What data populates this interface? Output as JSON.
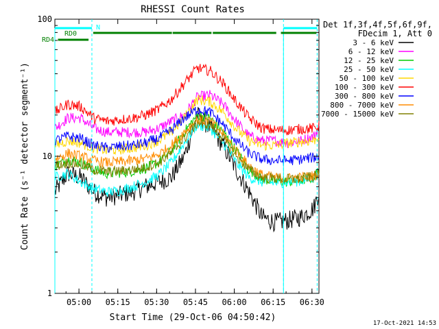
{
  "chart_data": {
    "type": "line",
    "title": "RHESSI Count Rates",
    "xlabel": "Start Time (29-Oct-06 04:50:42)",
    "ylabel": "Count Rate (s⁻¹ detector segment⁻¹)",
    "y_scale": "log",
    "ylim": [
      1,
      100
    ],
    "xlim_minutes_from_start": [
      0,
      102
    ],
    "x_ticks": [
      "05:00",
      "05:15",
      "05:30",
      "05:45",
      "06:00",
      "06:15",
      "06:30"
    ],
    "x_tick_minutes": [
      9.3,
      24.3,
      39.3,
      54.3,
      69.3,
      84.3,
      99.3
    ],
    "y_ticks": [
      "1",
      "10",
      "100"
    ],
    "y_tick_values": [
      1,
      10,
      100
    ],
    "legend": {
      "placement": "right",
      "header_lines": [
        "Det 1f,3f,4f,5f,6f,9f,",
        "FDecim 1, Att 0"
      ],
      "entries": [
        "3 - 6 keV",
        "6 - 12 keV",
        "12 - 25 keV",
        "25 - 50 keV",
        "50 - 100 keV",
        "100 - 300 keV",
        "300 - 800 keV",
        "800 - 7000 keV",
        "7000 - 15000 keV"
      ]
    },
    "series": [
      {
        "name": "3 - 6 keV",
        "color": "#000000",
        "x": [
          0,
          5,
          10,
          15,
          20,
          25,
          30,
          35,
          40,
          45,
          50,
          55,
          60,
          65,
          70,
          75,
          80,
          85,
          90,
          95,
          100,
          102
        ],
        "y": [
          5.5,
          7.5,
          7,
          5.5,
          5,
          5.2,
          5.5,
          6,
          6.5,
          7,
          10,
          20,
          16,
          12,
          8,
          5.5,
          3.6,
          3.3,
          3.4,
          3.6,
          4.2,
          5.5
        ]
      },
      {
        "name": "6 - 12 keV",
        "color": "#ff00ff",
        "x": [
          0,
          5,
          10,
          15,
          20,
          25,
          30,
          35,
          40,
          45,
          50,
          55,
          60,
          65,
          70,
          75,
          80,
          85,
          90,
          95,
          100,
          102
        ],
        "y": [
          16,
          19,
          19,
          16,
          15,
          15,
          15,
          15,
          16,
          18,
          20,
          27,
          28,
          24,
          18,
          14,
          13,
          13,
          12.5,
          13,
          14,
          16
        ]
      },
      {
        "name": "12 - 25 keV",
        "color": "#00cc00",
        "x": [
          0,
          5,
          10,
          15,
          20,
          25,
          30,
          35,
          40,
          45,
          50,
          55,
          60,
          65,
          70,
          75,
          80,
          85,
          90,
          95,
          100,
          102
        ],
        "y": [
          8.5,
          9.5,
          9,
          8,
          7.5,
          7.6,
          7.8,
          8.2,
          9,
          11,
          15,
          20,
          19,
          15,
          11,
          8,
          6.8,
          6.6,
          6.5,
          6.7,
          7,
          8
        ]
      },
      {
        "name": "25 - 50 keV",
        "color": "#00ffff",
        "x": [
          0,
          5,
          10,
          15,
          20,
          25,
          30,
          35,
          40,
          45,
          50,
          55,
          60,
          65,
          70,
          75,
          80,
          85,
          90,
          95,
          100,
          102
        ],
        "y": [
          7,
          7.5,
          6.5,
          5.8,
          5.5,
          5.6,
          6,
          6.5,
          7.3,
          9,
          12.5,
          17,
          16,
          12.5,
          9,
          7,
          6.5,
          6.4,
          6.5,
          6.6,
          7,
          7.5
        ]
      },
      {
        "name": "50 - 100 keV",
        "color": "#ffd700",
        "x": [
          0,
          5,
          10,
          15,
          20,
          25,
          30,
          35,
          40,
          45,
          50,
          55,
          60,
          65,
          70,
          75,
          80,
          85,
          90,
          95,
          100,
          102
        ],
        "y": [
          12,
          13,
          12.5,
          11.5,
          11,
          11.2,
          11.5,
          12,
          13,
          15,
          19,
          26,
          25,
          21,
          16,
          13,
          12,
          12,
          12.5,
          12.8,
          13,
          14
        ]
      },
      {
        "name": "100 - 300 keV",
        "color": "#ff0000",
        "x": [
          0,
          5,
          10,
          15,
          20,
          25,
          30,
          35,
          40,
          45,
          50,
          55,
          60,
          65,
          70,
          75,
          80,
          85,
          90,
          95,
          100,
          102
        ],
        "y": [
          21,
          24,
          23,
          19,
          18,
          18.5,
          19,
          20,
          22,
          26,
          34,
          44,
          42,
          34,
          25,
          19,
          16,
          15.5,
          15.5,
          15.8,
          16,
          16.5
        ]
      },
      {
        "name": "300 - 800 keV",
        "color": "#0000ff",
        "x": [
          0,
          5,
          10,
          15,
          20,
          25,
          30,
          35,
          40,
          45,
          50,
          55,
          60,
          65,
          70,
          75,
          80,
          85,
          90,
          95,
          100,
          102
        ],
        "y": [
          13,
          14,
          13.5,
          12,
          11.5,
          11.8,
          12,
          12.5,
          13.5,
          15.5,
          19,
          22,
          21,
          17,
          13,
          10.5,
          9.5,
          9.3,
          9.3,
          9.5,
          9.8,
          10
        ]
      },
      {
        "name": "800 - 7000 keV",
        "color": "#ff8c00",
        "x": [
          0,
          5,
          10,
          15,
          20,
          25,
          30,
          35,
          40,
          45,
          50,
          55,
          60,
          65,
          70,
          75,
          80,
          85,
          90,
          95,
          100,
          102
        ],
        "y": [
          9.5,
          10.5,
          10,
          9.3,
          9,
          9.1,
          9.3,
          9.6,
          10.3,
          12,
          15,
          18.5,
          18,
          14.5,
          11,
          8.5,
          7.3,
          7,
          6.9,
          7,
          7.2,
          7.5
        ]
      },
      {
        "name": "7000 - 15000 keV",
        "color": "#808000",
        "x": [
          0,
          5,
          10,
          15,
          20,
          25,
          30,
          35,
          40,
          45,
          50,
          55,
          60,
          65,
          70,
          75,
          80,
          85,
          90,
          95,
          100,
          102
        ],
        "y": [
          8.5,
          9,
          8.7,
          8,
          7.7,
          7.8,
          8,
          8.3,
          9,
          10.5,
          13.5,
          17.5,
          17,
          13.5,
          10,
          8,
          7,
          6.9,
          6.8,
          6.9,
          7.1,
          7.4
        ]
      }
    ],
    "attenuator_bar": {
      "label": "N",
      "color": "#00ffff",
      "intervals": [
        [
          0,
          14.3
        ],
        [
          88.3,
          101.3
        ]
      ]
    },
    "decimation_bars": {
      "labels": [
        "RD0",
        "RD4"
      ],
      "color": "#008000",
      "intervals": [
        [
          1.2,
          13
        ],
        [
          14.8,
          45.2
        ],
        [
          45.5,
          60.5
        ],
        [
          61,
          85.5
        ],
        [
          87.3,
          101
        ]
      ]
    },
    "vertical_markers_minutes": [
      14.3,
      88.3,
      101.3
    ],
    "footer_timestamp": "17-Oct-2021 14:53"
  }
}
